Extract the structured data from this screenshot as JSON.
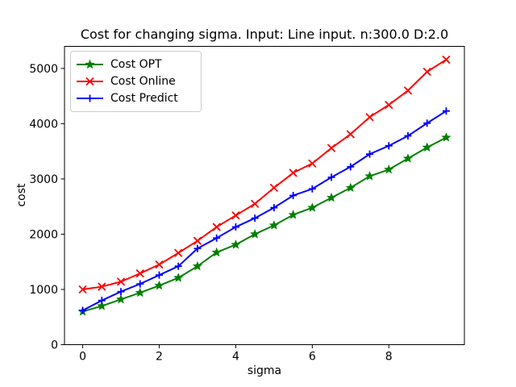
{
  "chart_data": {
    "type": "line",
    "title": "Cost for changing sigma. Input: Line input. n:300.0 D:2.0",
    "xlabel": "sigma",
    "ylabel": "cost",
    "x": [
      0,
      0.5,
      1,
      1.5,
      2,
      2.5,
      3,
      3.5,
      4,
      4.5,
      5,
      5.5,
      6,
      6.5,
      7,
      7.5,
      8,
      8.5,
      9,
      9.5
    ],
    "series": [
      {
        "name": "Cost OPT",
        "color": "#008000",
        "marker": "star",
        "values": [
          600,
          700,
          820,
          940,
          1070,
          1210,
          1420,
          1670,
          1810,
          2000,
          2160,
          2350,
          2480,
          2660,
          2840,
          3050,
          3170,
          3370,
          3570,
          3750
        ]
      },
      {
        "name": "Cost Online",
        "color": "#ff0000",
        "marker": "x",
        "values": [
          1000,
          1050,
          1140,
          1290,
          1450,
          1660,
          1880,
          2130,
          2340,
          2550,
          2840,
          3110,
          3280,
          3560,
          3810,
          4120,
          4340,
          4600,
          4940,
          5160
        ]
      },
      {
        "name": "Cost Predict",
        "color": "#0000ff",
        "marker": "plus",
        "values": [
          620,
          800,
          960,
          1100,
          1260,
          1420,
          1740,
          1930,
          2130,
          2290,
          2480,
          2700,
          2820,
          3030,
          3220,
          3450,
          3600,
          3780,
          4010,
          4230
        ]
      }
    ],
    "xlim": [
      -0.475,
      9.975
    ],
    "ylim": [
      0,
      5400
    ],
    "xticks": [
      0,
      2,
      4,
      6,
      8
    ],
    "yticks": [
      0,
      1000,
      2000,
      3000,
      4000,
      5000
    ],
    "legend_position": "upper left",
    "grid": false,
    "axis_color": "#000000",
    "background_color": "#ffffff"
  }
}
